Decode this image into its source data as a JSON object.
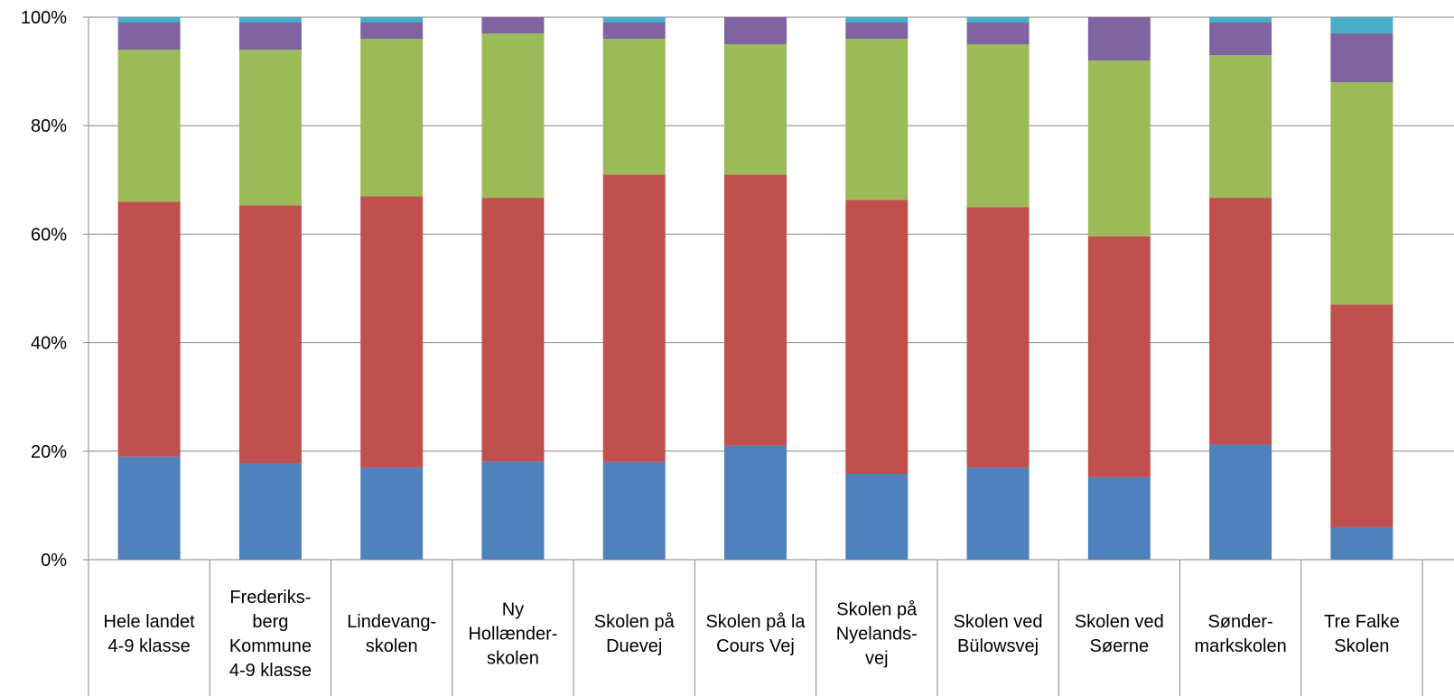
{
  "chart_data": {
    "type": "bar",
    "stacked": true,
    "percent": true,
    "categories": [
      [
        "Hele landet",
        "4-9 klasse"
      ],
      [
        "Frederiks-",
        "berg",
        "Kommune",
        "4-9 klasse"
      ],
      [
        "Lindevang-",
        "skolen"
      ],
      [
        "Ny",
        "Hollænder-",
        "skolen"
      ],
      [
        "Skolen på",
        "Duevej"
      ],
      [
        "Skolen på la",
        "Cours Vej"
      ],
      [
        "Skolen på",
        "Nyelands-",
        "vej"
      ],
      [
        "Skolen ved",
        "Bülowsvej"
      ],
      [
        "Skolen ved",
        "Søerne"
      ],
      [
        "Sønder-",
        "markskolen"
      ],
      [
        "Tre Falke",
        "Skolen"
      ]
    ],
    "series": [
      {
        "color": "#4f81bd",
        "values": [
          19,
          17.8,
          17,
          18.1,
          18,
          21,
          15.8,
          17,
          15.2,
          21.2,
          6
        ]
      },
      {
        "color": "#c0504d",
        "values": [
          47,
          47.5,
          50,
          48.6,
          53,
          50,
          50.5,
          48,
          44.4,
          45.5,
          41
        ]
      },
      {
        "color": "#9bbb59",
        "values": [
          28,
          28.7,
          29,
          30.3,
          25,
          24,
          29.7,
          30,
          32.4,
          26.3,
          41
        ]
      },
      {
        "color": "#8064a2",
        "values": [
          5,
          5,
          3,
          3,
          3,
          5,
          3,
          4,
          8,
          6,
          9
        ]
      },
      {
        "color": "#4bacc6",
        "values": [
          1,
          1,
          1,
          0,
          1,
          0,
          1,
          1,
          0,
          1,
          3
        ]
      }
    ],
    "ylim": [
      0,
      100
    ],
    "yticks": [
      0,
      20,
      40,
      60,
      80,
      100
    ],
    "ytick_labels": [
      "0%",
      "20%",
      "40%",
      "60%",
      "80%",
      "100%"
    ],
    "grid": true,
    "legend": "none",
    "title": "",
    "xlabel": "",
    "ylabel": ""
  }
}
